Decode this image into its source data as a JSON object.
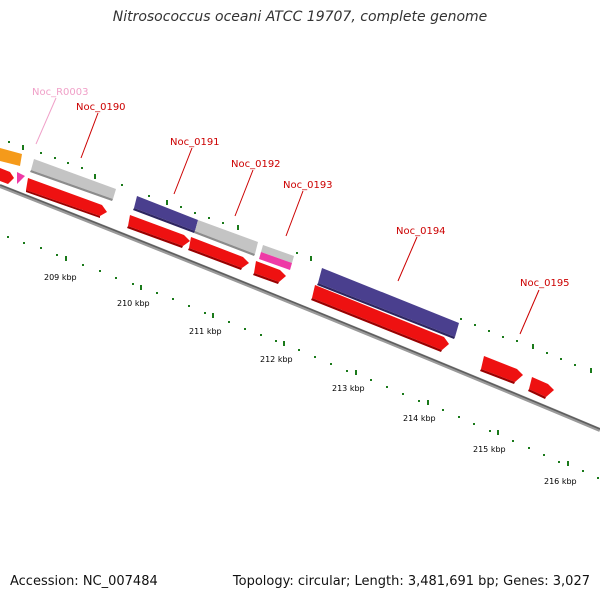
{
  "title": "Nitrosococcus oceani ATCC 19707, complete genome",
  "footer": {
    "accession": "Accession: NC_007484",
    "summary": "Topology: circular; Length: 3,481,691 bp; Genes: 3,027"
  },
  "colors": {
    "cds": "#ee1111",
    "gene_blue": "#4a3f8e",
    "gene_grey": "#bdbdbd",
    "gene_orange": "#f59a1a",
    "gene_pink": "#ee3aa6",
    "rna_label": "#f0a0c8",
    "gene_label": "#cc0000",
    "tick": "#1a7a1a",
    "backbone": "#7a7a7a"
  },
  "kbp_labels": [
    "209 kbp",
    "210 kbp",
    "211 kbp",
    "212 kbp",
    "213 kbp",
    "214 kbp",
    "215 kbp",
    "216 kbp"
  ],
  "gene_labels": [
    "Noc_R0003",
    "Noc_0190",
    "Noc_0191",
    "Noc_0192",
    "Noc_0193",
    "Noc_0194",
    "Noc_0195"
  ]
}
